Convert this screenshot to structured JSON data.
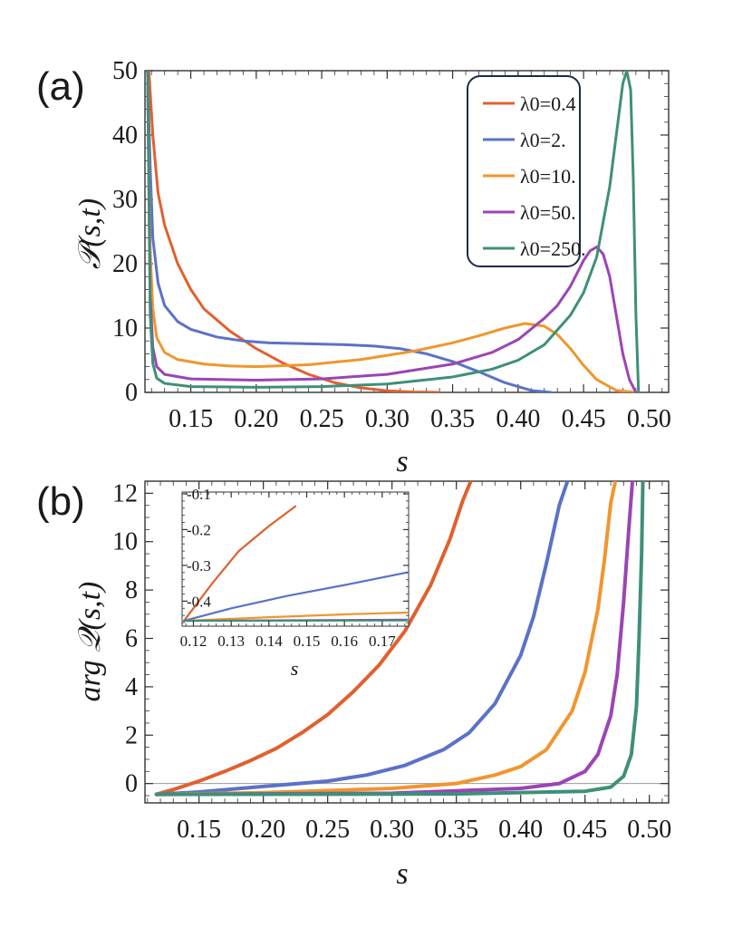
{
  "chart_data": [
    {
      "panel": "(a)",
      "type": "line",
      "ylabel": "𝒫(s,t)",
      "xlabel": "s",
      "xlim": [
        0.115,
        0.515
      ],
      "ylim": [
        0,
        50
      ],
      "xticks": [
        "0.15",
        "0.20",
        "0.25",
        "0.30",
        "0.35",
        "0.40",
        "0.45",
        "0.50"
      ],
      "yticks": [
        "0",
        "10",
        "20",
        "30",
        "40",
        "50"
      ],
      "legend_position": "top-right",
      "series": [
        {
          "name": "λ0=0.4",
          "color": "#e0612e",
          "x": [
            0.118,
            0.121,
            0.125,
            0.13,
            0.14,
            0.15,
            0.16,
            0.18,
            0.2,
            0.22,
            0.24,
            0.26,
            0.28,
            0.3,
            0.32,
            0.34
          ],
          "y": [
            50,
            40,
            31,
            26,
            20,
            16,
            13,
            9.5,
            6.8,
            4.6,
            2.8,
            1.5,
            0.7,
            0.25,
            0.05,
            0
          ]
        },
        {
          "name": "λ0=2.",
          "color": "#5b72c8",
          "x": [
            0.117,
            0.119,
            0.121,
            0.125,
            0.13,
            0.14,
            0.15,
            0.17,
            0.19,
            0.21,
            0.23,
            0.25,
            0.27,
            0.29,
            0.31,
            0.33,
            0.35,
            0.37,
            0.39,
            0.41,
            0.425
          ],
          "y": [
            50,
            35,
            24,
            17,
            13.5,
            11,
            9.8,
            8.6,
            8.0,
            7.7,
            7.6,
            7.5,
            7.4,
            7.2,
            6.8,
            6.0,
            4.8,
            3.2,
            1.5,
            0.3,
            0
          ]
        },
        {
          "name": "λ0=10.",
          "color": "#f0962e",
          "x": [
            0.117,
            0.119,
            0.121,
            0.124,
            0.13,
            0.14,
            0.16,
            0.18,
            0.2,
            0.24,
            0.28,
            0.32,
            0.35,
            0.37,
            0.39,
            0.405,
            0.42,
            0.43,
            0.44,
            0.45,
            0.46,
            0.475,
            0.49
          ],
          "y": [
            50,
            22,
            13,
            8.5,
            6.2,
            5.1,
            4.4,
            4.1,
            4.0,
            4.3,
            5.1,
            6.4,
            7.7,
            8.8,
            10.0,
            10.7,
            10.3,
            9.0,
            6.8,
            4.2,
            2.0,
            0.3,
            0
          ]
        },
        {
          "name": "λ0=50.",
          "color": "#9a45b5",
          "x": [
            0.117,
            0.119,
            0.121,
            0.124,
            0.13,
            0.15,
            0.2,
            0.25,
            0.3,
            0.35,
            0.38,
            0.4,
            0.42,
            0.43,
            0.44,
            0.45,
            0.455,
            0.46,
            0.465,
            0.47,
            0.475,
            0.48,
            0.485,
            0.49
          ],
          "y": [
            50,
            15,
            7,
            4,
            2.8,
            2.1,
            1.9,
            2.1,
            2.8,
            4.4,
            6.2,
            8.2,
            11.5,
            13.5,
            16.5,
            20.5,
            22,
            22.6,
            21.5,
            18,
            12,
            6,
            2,
            0
          ]
        },
        {
          "name": "λ0=250.",
          "color": "#3f8f7a",
          "x": [
            0.117,
            0.119,
            0.121,
            0.124,
            0.13,
            0.15,
            0.2,
            0.25,
            0.3,
            0.35,
            0.38,
            0.4,
            0.42,
            0.44,
            0.45,
            0.46,
            0.47,
            0.475,
            0.48,
            0.483,
            0.486,
            0.488,
            0.49,
            0.492
          ],
          "y": [
            50,
            12,
            4.5,
            2.2,
            1.4,
            0.9,
            0.8,
            0.9,
            1.3,
            2.4,
            3.6,
            5.0,
            7.4,
            12,
            15.5,
            21,
            32,
            40,
            48,
            50,
            47,
            33,
            12,
            0
          ]
        }
      ]
    },
    {
      "panel": "(b)",
      "type": "line",
      "ylabel": "arg 𝒬(s,t)",
      "xlabel": "s",
      "xlim": [
        0.108,
        0.515
      ],
      "ylim": [
        -0.8,
        12.5
      ],
      "xticks": [
        "0.15",
        "0.20",
        "0.25",
        "0.30",
        "0.35",
        "0.40",
        "0.45",
        "0.50"
      ],
      "yticks": [
        "0",
        "2",
        "4",
        "6",
        "8",
        "10",
        "12"
      ],
      "series": [
        {
          "name": "λ0=0.4",
          "color": "#e0612e",
          "x": [
            0.117,
            0.13,
            0.15,
            0.17,
            0.19,
            0.21,
            0.23,
            0.25,
            0.27,
            0.29,
            0.31,
            0.33,
            0.345,
            0.355,
            0.362
          ],
          "y": [
            -0.44,
            -0.25,
            0.1,
            0.5,
            0.95,
            1.45,
            2.1,
            2.85,
            3.8,
            4.9,
            6.3,
            8.2,
            10.1,
            11.7,
            12.6
          ]
        },
        {
          "name": "λ0=2.",
          "color": "#5b72c8",
          "x": [
            0.117,
            0.15,
            0.2,
            0.25,
            0.28,
            0.31,
            0.34,
            0.36,
            0.38,
            0.4,
            0.41,
            0.42,
            0.43,
            0.437
          ],
          "y": [
            -0.45,
            -0.35,
            -0.12,
            0.1,
            0.35,
            0.75,
            1.4,
            2.1,
            3.3,
            5.3,
            6.9,
            9.1,
            11.5,
            12.6
          ]
        },
        {
          "name": "λ0=10.",
          "color": "#f0962e",
          "x": [
            0.117,
            0.2,
            0.3,
            0.35,
            0.38,
            0.4,
            0.42,
            0.44,
            0.45,
            0.46,
            0.465,
            0.47,
            0.474
          ],
          "y": [
            -0.45,
            -0.38,
            -0.2,
            0.0,
            0.35,
            0.7,
            1.4,
            3.0,
            4.6,
            7.2,
            9.2,
            11.6,
            12.6
          ]
        },
        {
          "name": "λ0=50.",
          "color": "#9a45b5",
          "x": [
            0.117,
            0.3,
            0.4,
            0.43,
            0.45,
            0.46,
            0.47,
            0.475,
            0.48,
            0.484,
            0.487
          ],
          "y": [
            -0.45,
            -0.4,
            -0.2,
            0.0,
            0.5,
            1.2,
            2.8,
            4.5,
            7.5,
            10.5,
            12.6
          ]
        },
        {
          "name": "λ0=250.",
          "color": "#3f8f7a",
          "x": [
            0.117,
            0.35,
            0.45,
            0.47,
            0.48,
            0.486,
            0.49,
            0.492,
            0.494,
            0.495
          ],
          "y": [
            -0.45,
            -0.43,
            -0.32,
            -0.15,
            0.3,
            1.2,
            3.2,
            6,
            9.5,
            12.6
          ]
        }
      ],
      "inset": {
        "xlabel": "s",
        "xlim": [
          0.117,
          0.177
        ],
        "ylim": [
          -0.47,
          -0.095
        ],
        "xticks": [
          "0.12",
          "0.13",
          "0.14",
          "0.15",
          "0.16",
          "0.17"
        ],
        "yticks": [
          "-0.1",
          "-0.2",
          "-0.3",
          "-0.4"
        ],
        "series": [
          {
            "name": "λ0=0.4",
            "color": "#e0612e",
            "x": [
              0.1175,
              0.125,
              0.132,
              0.14,
              0.147
            ],
            "y": [
              -0.455,
              -0.35,
              -0.26,
              -0.19,
              -0.135
            ]
          },
          {
            "name": "λ0=2.",
            "color": "#5b72c8",
            "x": [
              0.1175,
              0.13,
              0.145,
              0.16,
              0.1765
            ],
            "y": [
              -0.455,
              -0.42,
              -0.385,
              -0.355,
              -0.32
            ]
          },
          {
            "name": "λ0=10.",
            "color": "#f0962e",
            "x": [
              0.1175,
              0.14,
              0.16,
              0.1765
            ],
            "y": [
              -0.455,
              -0.445,
              -0.437,
              -0.432
            ]
          },
          {
            "name": "λ0=50.",
            "color": "#9a45b5",
            "x": [
              0.1175,
              0.1765
            ],
            "y": [
              -0.455,
              -0.452
            ]
          },
          {
            "name": "λ0=250.",
            "color": "#3f8f7a",
            "x": [
              0.1175,
              0.1765
            ],
            "y": [
              -0.455,
              -0.454
            ]
          }
        ]
      }
    }
  ]
}
